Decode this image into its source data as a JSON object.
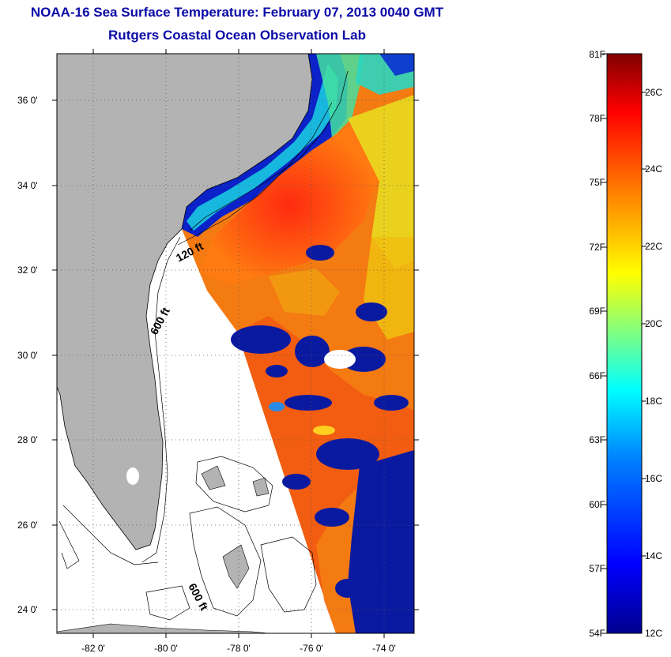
{
  "title": {
    "line1": "NOAA-16 Sea Surface Temperature:  February 07, 2013 0040 GMT",
    "line2": "Rutgers Coastal Ocean Observation Lab"
  },
  "map": {
    "lat_labels": [
      "36 0'",
      "34 0'",
      "32 0'",
      "30 0'",
      "28 0'",
      "26 0'",
      "24 0'"
    ],
    "lon_labels": [
      "-82 0'",
      "-80 0'",
      "-78 0'",
      "-76 0'",
      "-74 0'"
    ],
    "contour_labels": [
      "120 ft",
      "600 ft",
      "600 ft"
    ],
    "colors": {
      "land": "#b3b3b3",
      "nodata": "#ffffff",
      "cold_water": "#0a1aa0",
      "warm_water": "#e8401a"
    }
  },
  "colorbar": {
    "fahrenheit": [
      "81F",
      "78F",
      "75F",
      "72F",
      "69F",
      "66F",
      "63F",
      "60F",
      "57F",
      "54F"
    ],
    "celsius": [
      "26C",
      "24C",
      "22C",
      "20C",
      "18C",
      "16C",
      "14C",
      "12C"
    ],
    "range_f": [
      54,
      81
    ],
    "range_c": [
      12,
      27.2
    ],
    "colors": [
      "#00008f",
      "#0000ff",
      "#0080ff",
      "#00ffff",
      "#80ff80",
      "#ffff00",
      "#ff8000",
      "#ff0000",
      "#800000"
    ]
  }
}
